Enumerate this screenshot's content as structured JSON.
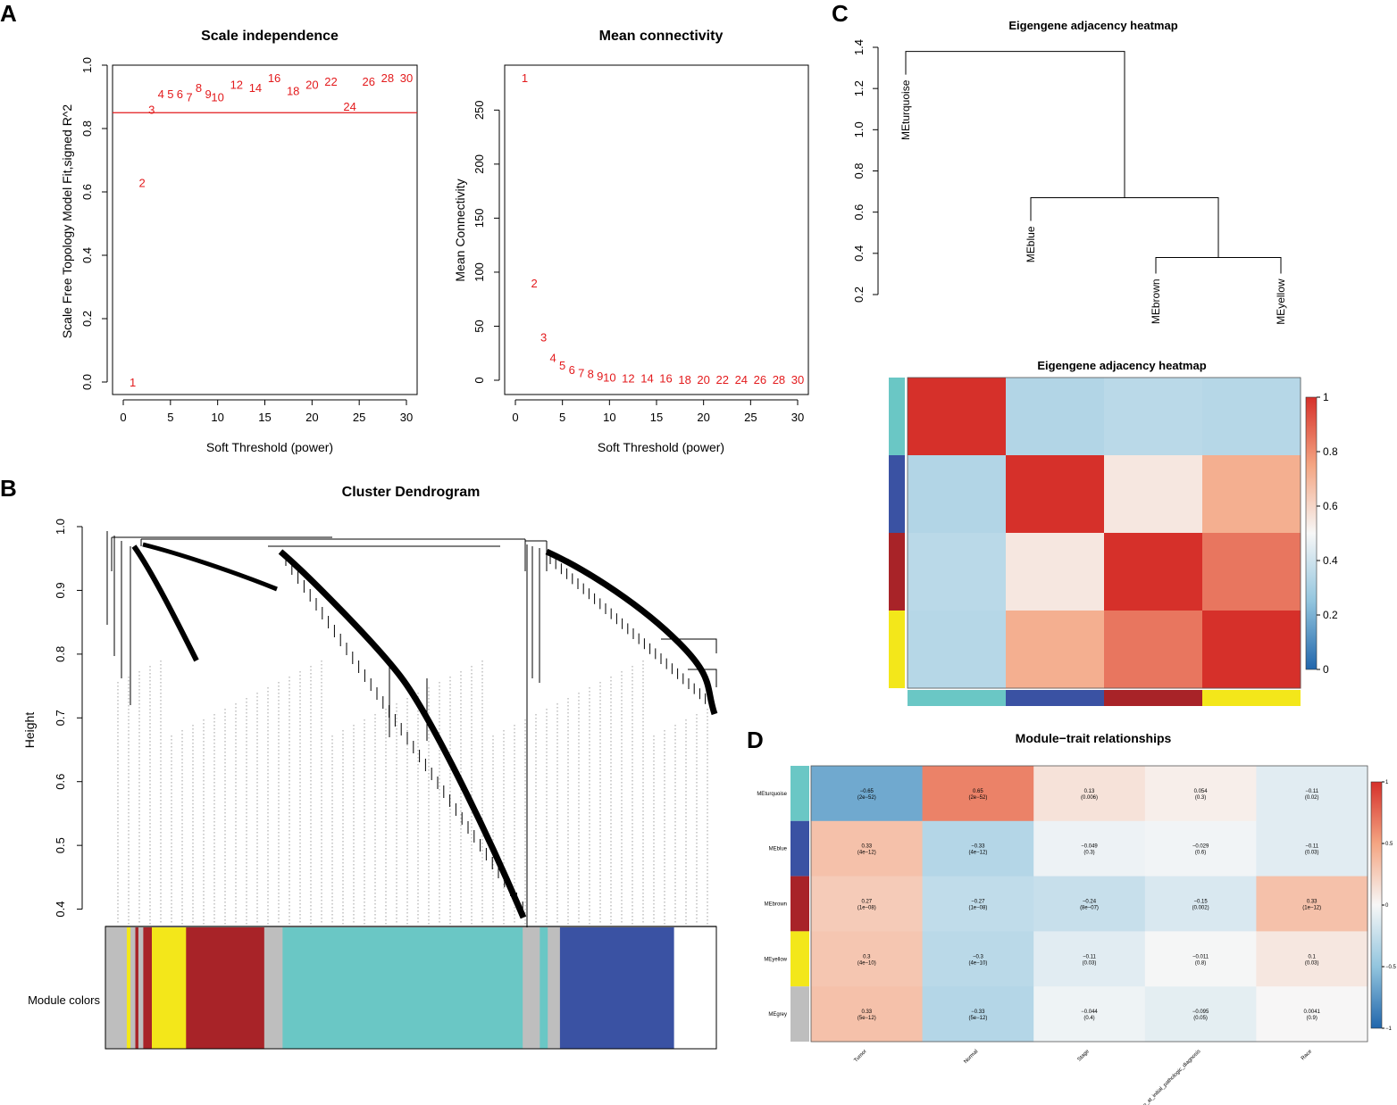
{
  "panels": {
    "A": "A",
    "B": "B",
    "C": "C",
    "D": "D"
  },
  "colors": {
    "turquoise": "#6ac7c5",
    "blue": "#3a52a3",
    "brown": "#a82328",
    "yellow": "#f3e71a",
    "grey": "#bebebe",
    "red_label": "#e31a1c"
  },
  "chart_data": [
    {
      "id": "scale_independence",
      "type": "scatter",
      "title": "Scale independence",
      "xlabel": "Soft Threshold (power)",
      "ylabel": "Scale Free Topology Model Fit,signed R^2",
      "xlim": [
        0,
        30
      ],
      "ylim": [
        0,
        1.0
      ],
      "xticks": [
        0,
        5,
        10,
        15,
        20,
        25,
        30
      ],
      "yticks": [
        0.0,
        0.2,
        0.4,
        0.6,
        0.8,
        1.0
      ],
      "hline": 0.85,
      "x": [
        1,
        2,
        3,
        4,
        5,
        6,
        7,
        8,
        9,
        10,
        12,
        14,
        16,
        18,
        20,
        22,
        24,
        26,
        28,
        30
      ],
      "y": [
        0.0,
        0.63,
        0.86,
        0.91,
        0.91,
        0.91,
        0.9,
        0.93,
        0.91,
        0.9,
        0.94,
        0.93,
        0.96,
        0.92,
        0.94,
        0.95,
        0.87,
        0.95,
        0.96,
        0.96
      ]
    },
    {
      "id": "mean_connectivity",
      "type": "scatter",
      "title": "Mean connectivity",
      "xlabel": "Soft Threshold (power)",
      "ylabel": "Mean Connectivity",
      "xlim": [
        0,
        30
      ],
      "ylim": [
        0,
        280
      ],
      "xticks": [
        0,
        5,
        10,
        15,
        20,
        25,
        30
      ],
      "yticks": [
        0,
        50,
        100,
        150,
        200,
        250
      ],
      "x": [
        1,
        2,
        3,
        4,
        5,
        6,
        7,
        8,
        9,
        10,
        12,
        14,
        16,
        18,
        20,
        22,
        24,
        26,
        28,
        30
      ],
      "y": [
        280,
        90,
        40,
        21,
        14,
        10,
        7,
        6,
        4,
        3,
        2,
        2,
        2,
        1,
        1,
        1,
        1,
        1,
        1,
        1
      ]
    },
    {
      "id": "cluster_dendrogram",
      "type": "dendrogram",
      "title": "Cluster Dendrogram",
      "ylabel": "Height",
      "ylim": [
        0.37,
        1.0
      ],
      "yticks": [
        0.4,
        0.5,
        0.6,
        0.7,
        0.8,
        0.9,
        1.0
      ],
      "color_bar_label": "Module colors",
      "color_segments": [
        {
          "color": "grey",
          "frac": 0.035
        },
        {
          "color": "yellow",
          "frac": 0.006
        },
        {
          "color": "grey",
          "frac": 0.008
        },
        {
          "color": "brown",
          "frac": 0.005
        },
        {
          "color": "grey",
          "frac": 0.008
        },
        {
          "color": "brown",
          "frac": 0.014
        },
        {
          "color": "yellow",
          "frac": 0.056
        },
        {
          "color": "brown",
          "frac": 0.128
        },
        {
          "color": "grey",
          "frac": 0.03
        },
        {
          "color": "turquoise",
          "frac": 0.393
        },
        {
          "color": "grey",
          "frac": 0.028
        },
        {
          "color": "turquoise",
          "frac": 0.013
        },
        {
          "color": "grey",
          "frac": 0.02
        },
        {
          "color": "blue",
          "frac": 0.186
        }
      ]
    },
    {
      "id": "eigengene_dendrogram",
      "type": "dendrogram",
      "title": "Eigengene adjacency heatmap",
      "ylim": [
        0.2,
        1.4
      ],
      "yticks": [
        0.2,
        0.4,
        0.6,
        0.8,
        1.0,
        1.2,
        1.4
      ],
      "leaves": [
        "MEturquoise",
        "MEblue",
        "MEbrown",
        "MEyellow"
      ],
      "merges": [
        {
          "height": 0.38,
          "left": "MEbrown",
          "right": "MEyellow"
        },
        {
          "height": 0.67,
          "left": "MEblue",
          "right": "brown+yellow"
        },
        {
          "height": 1.38,
          "left": "MEturquoise",
          "right": "rest"
        }
      ]
    },
    {
      "id": "eigengene_heatmap",
      "type": "heatmap",
      "title": "Eigengene adjacency heatmap",
      "rows": [
        "turquoise",
        "blue",
        "brown",
        "yellow"
      ],
      "cols": [
        "turquoise",
        "blue",
        "brown",
        "yellow"
      ],
      "values": [
        [
          1.0,
          0.33,
          0.35,
          0.34
        ],
        [
          0.33,
          1.0,
          0.55,
          0.72
        ],
        [
          0.35,
          0.55,
          1.0,
          0.85
        ],
        [
          0.34,
          0.72,
          0.85,
          1.0
        ]
      ],
      "scale": [
        0,
        1
      ],
      "scale_ticks": [
        "0",
        "0.2",
        "0.4",
        "0.6",
        "0.8",
        "1"
      ]
    },
    {
      "id": "module_trait",
      "type": "heatmap",
      "title": "Module−trait relationships",
      "rows": [
        "MEturquoise",
        "MEblue",
        "MEbrown",
        "MEyellow",
        "MEgrey"
      ],
      "row_colors": [
        "turquoise",
        "blue",
        "brown",
        "yellow",
        "grey"
      ],
      "cols": [
        "Tumor",
        "Normal",
        "Stage",
        "age_at_initial_pathologic_diagnosis",
        "Race"
      ],
      "values": [
        [
          -0.65,
          0.65,
          0.13,
          0.054,
          -0.11
        ],
        [
          0.33,
          -0.33,
          -0.049,
          -0.029,
          -0.11
        ],
        [
          0.27,
          -0.27,
          -0.24,
          -0.15,
          0.33
        ],
        [
          0.3,
          -0.3,
          -0.11,
          -0.011,
          0.1
        ],
        [
          0.33,
          -0.33,
          -0.044,
          -0.095,
          0.0041
        ]
      ],
      "labels": [
        [
          "−0.65",
          "0.65",
          "0.13",
          "0.054",
          "−0.11"
        ],
        [
          "0.33",
          "−0.33",
          "−0.049",
          "−0.029",
          "−0.11"
        ],
        [
          "0.27",
          "−0.27",
          "−0.24",
          "−0.15",
          "0.33"
        ],
        [
          "0.3",
          "−0.3",
          "−0.11",
          "−0.011",
          "0.1"
        ],
        [
          "0.33",
          "−0.33",
          "−0.044",
          "−0.095",
          "0.0041"
        ]
      ],
      "pvalues": [
        [
          "(2e−52)",
          "(2e−52)",
          "(0.006)",
          "(0.3)",
          "(0.02)"
        ],
        [
          "(4e−12)",
          "(4e−12)",
          "(0.3)",
          "(0.6)",
          "(0.03)"
        ],
        [
          "(1e−08)",
          "(1e−08)",
          "(8e−07)",
          "(0.002)",
          "(1e−12)"
        ],
        [
          "(4e−10)",
          "(4e−10)",
          "(0.03)",
          "(0.8)",
          "(0.03)"
        ],
        [
          "(5e−12)",
          "(5e−12)",
          "(0.4)",
          "(0.05)",
          "(0.9)"
        ]
      ],
      "scale": [
        -1,
        1
      ],
      "scale_ticks": [
        "1",
        "0.5",
        "0",
        "−0.5",
        "−1"
      ]
    }
  ]
}
